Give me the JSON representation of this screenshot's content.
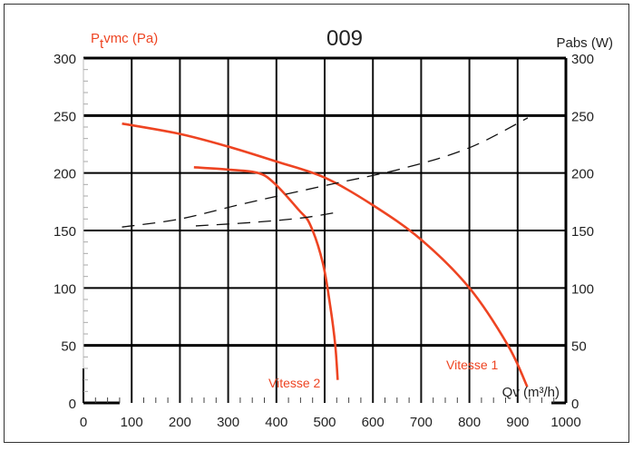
{
  "chart_data": {
    "type": "line",
    "title": "009",
    "ylabel_left": "vmc (Pa)",
    "ylabel_left_prefix": "P",
    "ylabel_left_sub": "t",
    "ylabel_right": "Pabs (W)",
    "xlabel": "Qv (m³/h)",
    "xlim": [
      0,
      1000
    ],
    "ylim": [
      0,
      300
    ],
    "ylim_right": [
      0,
      300
    ],
    "grid": true,
    "x_ticks": [
      "0",
      "100",
      "200",
      "300",
      "400",
      "500",
      "600",
      "700",
      "800",
      "900",
      "1000"
    ],
    "y_ticks": [
      "0",
      "50",
      "100",
      "150",
      "200",
      "250",
      "300"
    ],
    "colors": {
      "pressure": "#ee4422",
      "power": "#111111",
      "grid": "#000000"
    },
    "series": [
      {
        "name": "Vitesse 1",
        "axis": "left",
        "style": "solid",
        "x": [
          80,
          200,
          300,
          400,
          500,
          600,
          700,
          800,
          880,
          920
        ],
        "y": [
          243,
          234,
          223,
          210,
          196,
          172,
          142,
          100,
          50,
          14
        ]
      },
      {
        "name": "Vitesse 2",
        "axis": "left",
        "style": "solid",
        "x": [
          229,
          300,
          362,
          396,
          446,
          470,
          496,
          512,
          522,
          527
        ],
        "y": [
          205,
          203,
          200,
          191,
          168,
          155,
          122,
          83,
          50,
          20
        ]
      },
      {
        "axis": "right",
        "style": "dashed",
        "x": [
          80,
          200,
          329,
          500,
          662,
          800,
          921
        ],
        "y": [
          153,
          160,
          173,
          189,
          204,
          222,
          248
        ]
      },
      {
        "axis": "right",
        "style": "dashed",
        "x": [
          233,
          350,
          454,
          529
        ],
        "y": [
          154,
          157,
          161,
          166
        ]
      }
    ]
  }
}
